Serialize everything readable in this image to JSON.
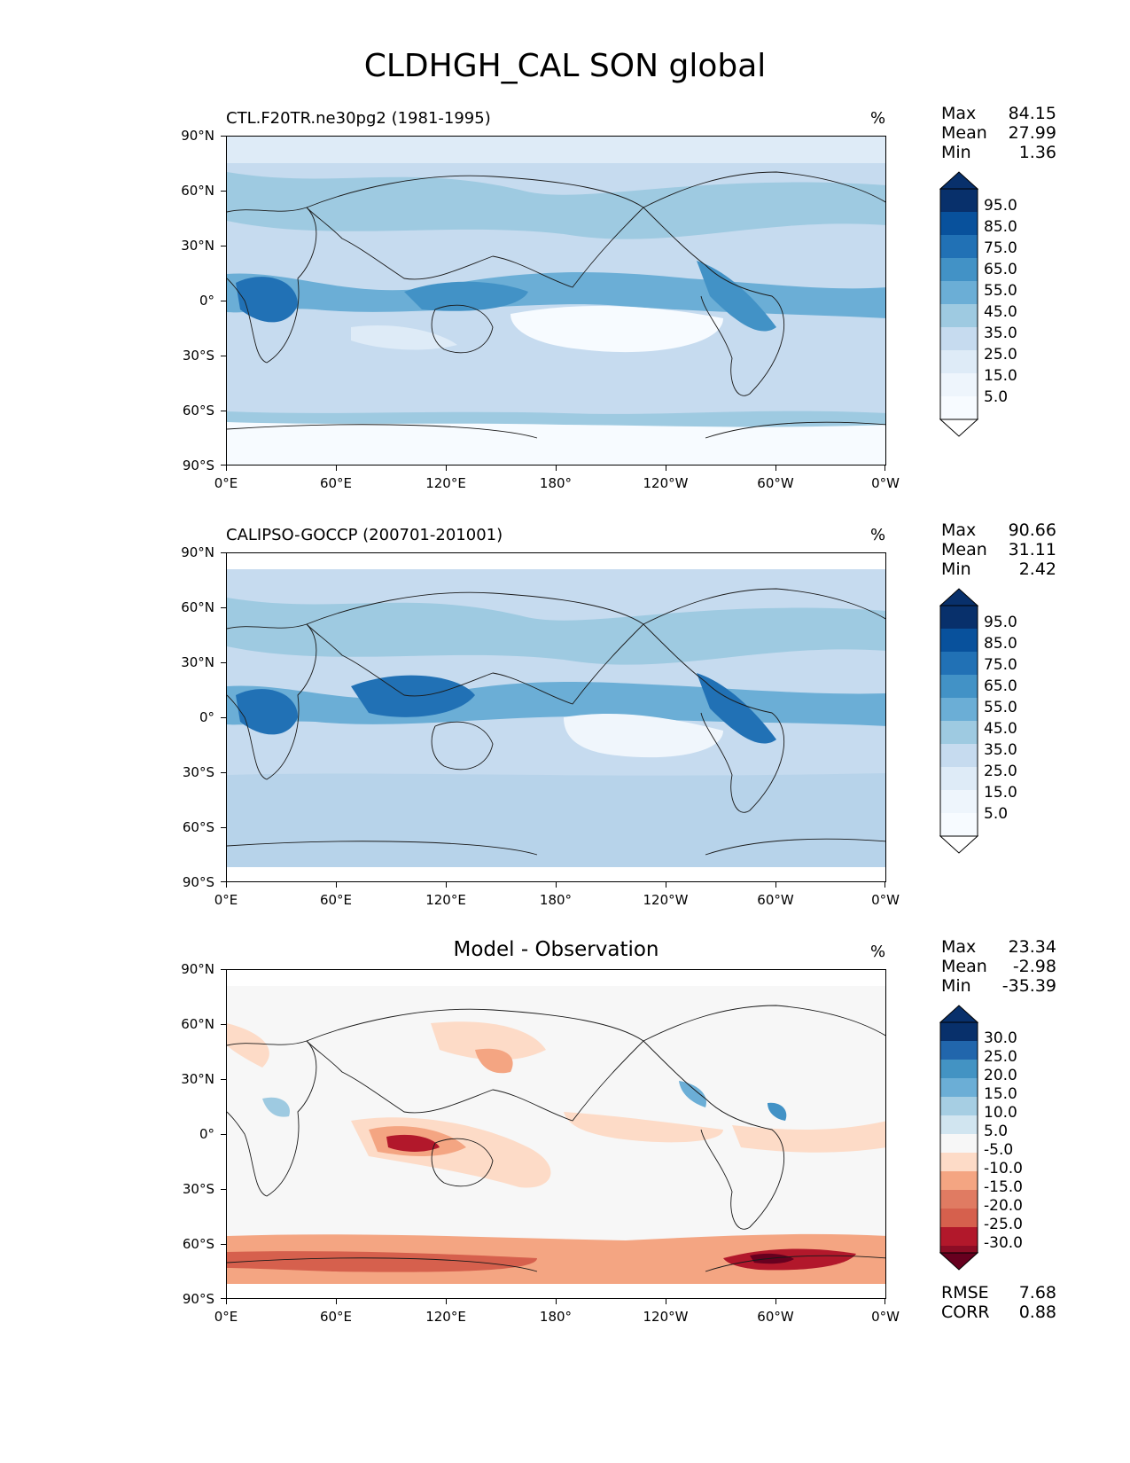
{
  "title": "CLDHGH_CAL SON global",
  "axes": {
    "y_ticks": [
      "90°N",
      "60°N",
      "30°N",
      "0°",
      "30°S",
      "60°S",
      "90°S"
    ],
    "x_ticks": [
      "0°E",
      "60°E",
      "120°E",
      "180°",
      "120°W",
      "60°W",
      "0°W"
    ]
  },
  "colors": {
    "blues": [
      "#f7fbff",
      "#deebf7",
      "#c6dbef",
      "#9ecae1",
      "#6baed6",
      "#4292c6",
      "#2171b5",
      "#08519c",
      "#08306b"
    ],
    "reds": [
      "#fddbc7",
      "#f4a582",
      "#d6604d",
      "#b2182b",
      "#67001f"
    ],
    "land_line": "#1a1a1a"
  },
  "panels": [
    {
      "title": "CTL.F20TR.ne30pg2 (1981-1995)",
      "units": "%",
      "stats": {
        "max_label": "Max",
        "max": "84.15",
        "mean_label": "Mean",
        "mean": "27.99",
        "min_label": "Min",
        "min": "1.36"
      },
      "colorbar": {
        "labels": [
          "95.0",
          "85.0",
          "75.0",
          "65.0",
          "55.0",
          "45.0",
          "35.0",
          "25.0",
          "15.0",
          "5.0"
        ]
      }
    },
    {
      "title": "CALIPSO-GOCCP (200701-201001)",
      "units": "%",
      "stats": {
        "max_label": "Max",
        "max": "90.66",
        "mean_label": "Mean",
        "mean": "31.11",
        "min_label": "Min",
        "min": "2.42"
      },
      "colorbar": {
        "labels": [
          "95.0",
          "85.0",
          "75.0",
          "65.0",
          "55.0",
          "45.0",
          "35.0",
          "25.0",
          "15.0",
          "5.0"
        ]
      }
    },
    {
      "title": "Model - Observation",
      "units": "%",
      "stats": {
        "max_label": "Max",
        "max": "23.34",
        "mean_label": "Mean",
        "mean": "-2.98",
        "min_label": "Min",
        "min": "-35.39"
      },
      "colorbar": {
        "labels": [
          "30.0",
          "25.0",
          "20.0",
          "15.0",
          "10.0",
          "5.0",
          "-5.0",
          "-10.0",
          "-15.0",
          "-20.0",
          "-25.0",
          "-30.0"
        ]
      },
      "metrics": {
        "rmse_label": "RMSE",
        "rmse": "7.68",
        "corr_label": "CORR",
        "corr": "0.88"
      }
    }
  ]
}
